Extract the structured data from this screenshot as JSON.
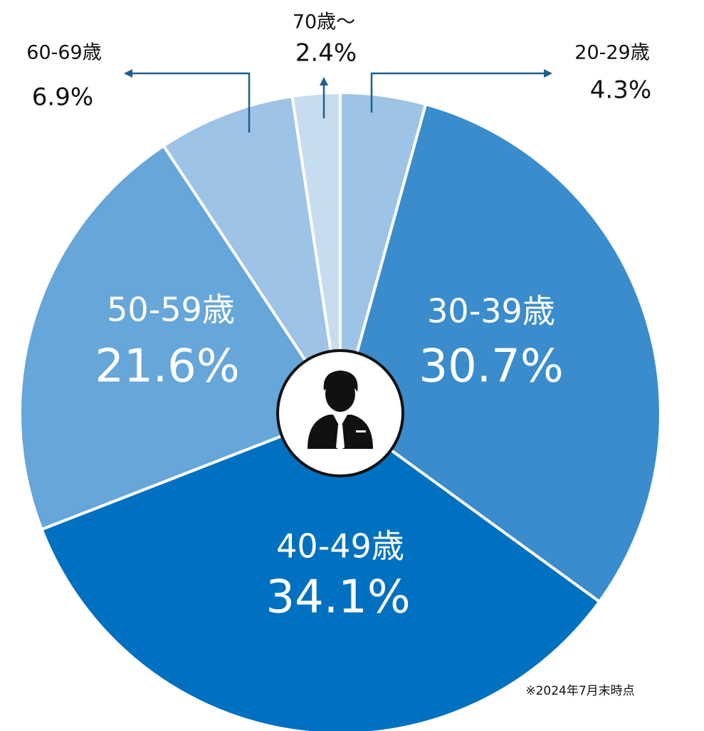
{
  "chart_data": {
    "type": "pie",
    "categories": [
      "20-29歳",
      "30-39歳",
      "40-49歳",
      "50-59歳",
      "60-69歳",
      "70歳～"
    ],
    "values": [
      4.3,
      30.7,
      34.1,
      21.6,
      6.9,
      2.4
    ],
    "value_labels": [
      "4.3%",
      "30.7%",
      "34.1%",
      "21.6%",
      "6.9%",
      "2.4%"
    ],
    "colors": [
      "#9dc3e6",
      "#3a8ccc",
      "#0070c0",
      "#66a6d9",
      "#9dc3e6",
      "#c8dcf0"
    ],
    "note": "※2024年7月末時点"
  }
}
